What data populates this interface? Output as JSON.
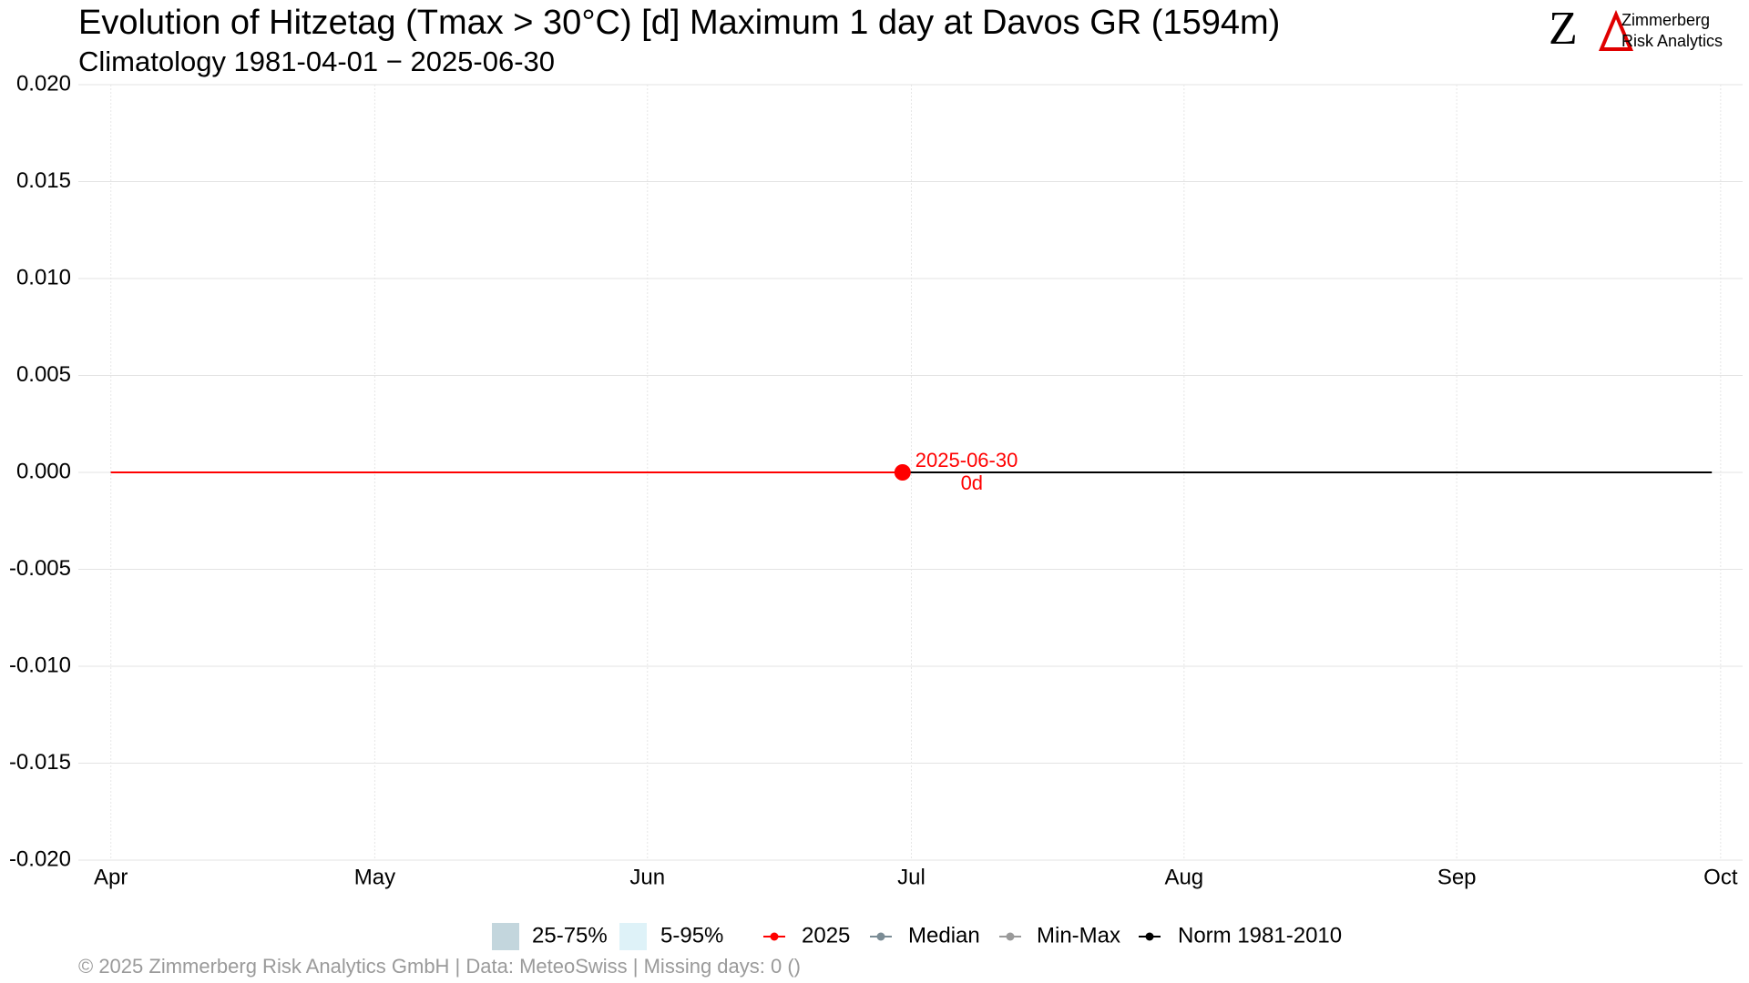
{
  "chart_data": {
    "type": "line",
    "title": "Evolution of Hitzetag (Tmax > 30°C) [d] Maximum 1 day at Davos  GR (1594m)",
    "subtitle": "Climatology 1981-04-01 − 2025-06-30",
    "xlim": [
      -3.7,
      185.5
    ],
    "xticks": [
      {
        "value": 0,
        "label": "Apr"
      },
      {
        "value": 30,
        "label": "May"
      },
      {
        "value": 61,
        "label": "Jun"
      },
      {
        "value": 91,
        "label": "Jul"
      },
      {
        "value": 122,
        "label": "Aug"
      },
      {
        "value": 153,
        "label": "Sep"
      },
      {
        "value": 183,
        "label": "Oct"
      }
    ],
    "ylim": [
      -0.02,
      0.02
    ],
    "yticks": [
      {
        "value": 0.02,
        "label": "0.020"
      },
      {
        "value": 0.015,
        "label": "0.015"
      },
      {
        "value": 0.01,
        "label": "0.010"
      },
      {
        "value": 0.005,
        "label": "0.005"
      },
      {
        "value": 0,
        "label": "0.000"
      },
      {
        "value": -0.005,
        "label": "-0.005"
      },
      {
        "value": -0.01,
        "label": "-0.010"
      },
      {
        "value": -0.015,
        "label": "-0.015"
      },
      {
        "value": -0.02,
        "label": "-0.020"
      }
    ],
    "grid": true,
    "series": [
      {
        "name": "25-75%",
        "color": "#c3d6dd",
        "kind": "band",
        "x": [],
        "values": []
      },
      {
        "name": "5-95%",
        "color": "#def2f8",
        "kind": "band",
        "x": [],
        "values": []
      },
      {
        "name": "2025",
        "color": "#ff0000",
        "kind": "line",
        "x": [
          0,
          90
        ],
        "values": [
          0,
          0
        ]
      },
      {
        "name": "Median",
        "color": "#7b8c95",
        "kind": "line",
        "x": [],
        "values": []
      },
      {
        "name": "Min-Max",
        "color": "#9a9a9a",
        "kind": "line",
        "x": [],
        "values": []
      },
      {
        "name": "Norm 1981-2010",
        "color": "#000000",
        "kind": "line",
        "x": [
          0,
          182
        ],
        "values": [
          0,
          0
        ]
      }
    ],
    "annotations": [
      {
        "text": "2025-06-30"
      },
      {
        "text": "0d"
      }
    ]
  },
  "logo": {
    "mark": "Z",
    "line1": "Zimmerberg",
    "line2": "Risk Analytics"
  },
  "footer": "©  2025 Zimmerberg Risk Analytics GmbH | Data: MeteoSwiss | Missing days: 0 ()"
}
